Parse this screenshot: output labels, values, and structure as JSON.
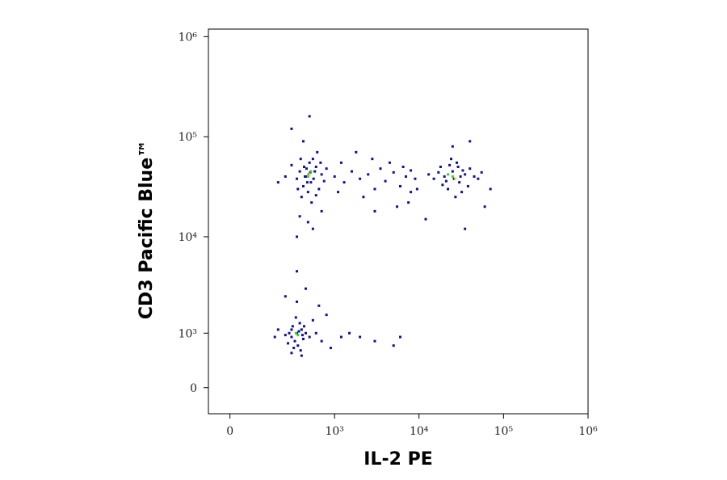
{
  "chart_data": {
    "type": "scatter",
    "x_label": "IL-2 PE",
    "y_label": "CD3 Pacific Blue™",
    "xscale": "asinh",
    "x_cofactor": 116,
    "yscale": "asinh",
    "y_cofactor": 621,
    "xlim": [
      -72,
      1000000
    ],
    "ylim": [
      -395,
      1190000
    ],
    "xticks": [
      0,
      {
        "value": 1000,
        "label": "10³"
      },
      {
        "value": 10000,
        "label": "10⁴"
      },
      {
        "value": 100000,
        "label": "10⁵"
      },
      {
        "value": 1000000,
        "label": "10⁶"
      }
    ],
    "yticks": [
      0,
      {
        "value": 1000,
        "label": "10³"
      },
      {
        "value": 10000,
        "label": "10⁴"
      },
      {
        "value": 100000,
        "label": "10⁵"
      },
      {
        "value": 1000000,
        "label": "10⁶"
      }
    ],
    "series": [
      {
        "color": "#10109a",
        "x": [
          450,
          520,
          380,
          600,
          480,
          550,
          420,
          700,
          350,
          650,
          500,
          400,
          580,
          460,
          300,
          750,
          530,
          620,
          440,
          510,
          360,
          680,
          470,
          560,
          390,
          800,
          250,
          600,
          430,
          490,
          480,
          550,
          350,
          500,
          300,
          420,
          700,
          200,
          380,
          20000,
          25000,
          30000,
          18000,
          35000,
          22000,
          28000,
          15000,
          40000,
          26000,
          32000,
          24000,
          45000,
          17000,
          38000,
          21000,
          29000,
          50000,
          13000,
          27000,
          33000,
          19000,
          23000,
          55000,
          31000,
          35000,
          60000,
          70000,
          12000,
          40000,
          25000,
          8000,
          1000,
          1300,
          1600,
          2000,
          2500,
          3000,
          3500,
          4000,
          5000,
          6000,
          7000,
          8000,
          9000,
          1200,
          2200,
          4500,
          5500,
          1800,
          3000,
          6500,
          1100,
          2800,
          9500,
          7500,
          350,
          300,
          400,
          330,
          380,
          280,
          420,
          360,
          310,
          450,
          250,
          390,
          340,
          500,
          270,
          430,
          370,
          320,
          410,
          300,
          600,
          700,
          550,
          200,
          180,
          650,
          250,
          350,
          450,
          800,
          1200,
          2000,
          3000,
          5000,
          6000,
          900,
          1500,
          350,
          400,
          300
        ],
        "values": [
          40000,
          35000,
          45000,
          50000,
          28000,
          60000,
          32000,
          42000,
          38000,
          30000,
          55000,
          25000,
          45000,
          48000,
          52000,
          36000,
          22000,
          70000,
          40000,
          44000,
          30000,
          55000,
          35000,
          38000,
          60000,
          48000,
          40000,
          26000,
          50000,
          42000,
          14000,
          12000,
          10000,
          160000,
          120000,
          90000,
          18000,
          35000,
          16000,
          40000,
          45000,
          35000,
          50000,
          42000,
          30000,
          55000,
          38000,
          48000,
          38000,
          28000,
          60000,
          40000,
          44000,
          32000,
          36000,
          50000,
          38000,
          42000,
          25000,
          46000,
          33000,
          52000,
          44000,
          40000,
          12000,
          20000,
          30000,
          15000,
          90000,
          80000,
          28000,
          40000,
          35000,
          45000,
          38000,
          42000,
          30000,
          48000,
          36000,
          44000,
          32000,
          40000,
          46000,
          38000,
          55000,
          25000,
          55000,
          20000,
          70000,
          18000,
          50000,
          28000,
          60000,
          30000,
          22000,
          1000,
          900,
          1100,
          800,
          1300,
          1000,
          850,
          700,
          1200,
          1000,
          950,
          600,
          1500,
          900,
          750,
          1200,
          1050,
          650,
          950,
          1100,
          1000,
          800,
          1400,
          1100,
          900,
          2000,
          2500,
          2200,
          3000,
          1600,
          900,
          900,
          800,
          700,
          900,
          650,
          1000,
          4500,
          500,
          550
        ]
      },
      {
        "color": "#3bd13b",
        "x": [
          480,
          520,
          25000,
          22000,
          340,
          360
        ],
        "values": [
          40000,
          45000,
          40000,
          42000,
          1000,
          950
        ]
      },
      {
        "color": "#e8e820",
        "x": [
          500,
          27000
        ],
        "values": [
          42000,
          38000
        ]
      }
    ]
  }
}
